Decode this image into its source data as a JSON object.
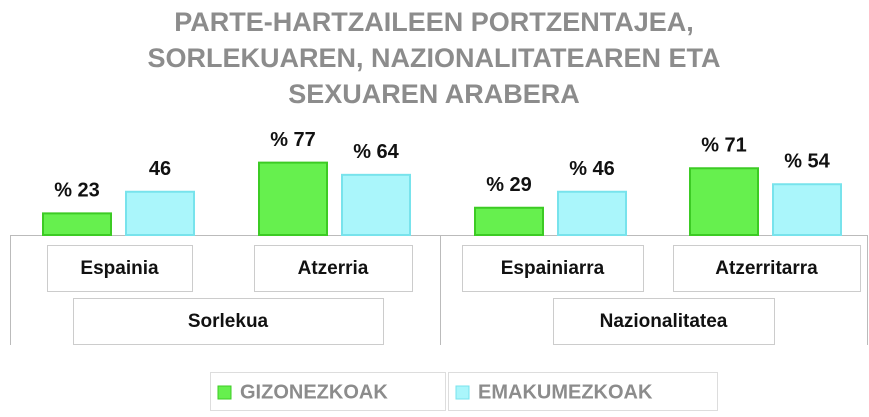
{
  "chart_data": {
    "type": "bar",
    "title": [
      "PARTE-HARTZAILEEN PORTZENTAJEA,",
      "SORLEKUAREN, NAZIONALITATEAREN ETA",
      "SEXUAREN ARABERA"
    ],
    "groups": [
      {
        "name": "Sorlekua",
        "categories": [
          "Espainia",
          "Atzerria"
        ]
      },
      {
        "name": "Nazionalitatea",
        "categories": [
          "Espainiarra",
          "Atzerritarra"
        ]
      }
    ],
    "series": [
      {
        "name": "GIZONEZKOAK",
        "color": "#66f04e",
        "values": [
          23,
          77,
          29,
          71
        ],
        "value_labels": [
          "% 23",
          "% 77",
          "% 29",
          "% 71"
        ]
      },
      {
        "name": "EMAKUMEZKOAK",
        "color": "#aaf6fb",
        "values": [
          46,
          64,
          46,
          54
        ],
        "value_labels": [
          "46",
          "% 64",
          "% 46",
          "% 54"
        ]
      }
    ]
  }
}
